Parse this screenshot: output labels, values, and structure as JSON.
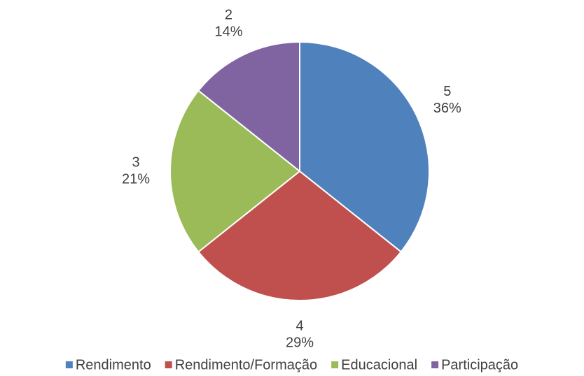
{
  "chart_data": {
    "type": "pie",
    "categories": [
      "Rendimento",
      "Rendimento/Formação",
      "Educacional",
      "Participação"
    ],
    "values": [
      5,
      4,
      3,
      2
    ],
    "percent_labels": [
      "36%",
      "29%",
      "21%",
      "14%"
    ],
    "colors": [
      "#4f81bd",
      "#c0504d",
      "#9bbb59",
      "#8064a2"
    ],
    "legend": "bottom"
  }
}
